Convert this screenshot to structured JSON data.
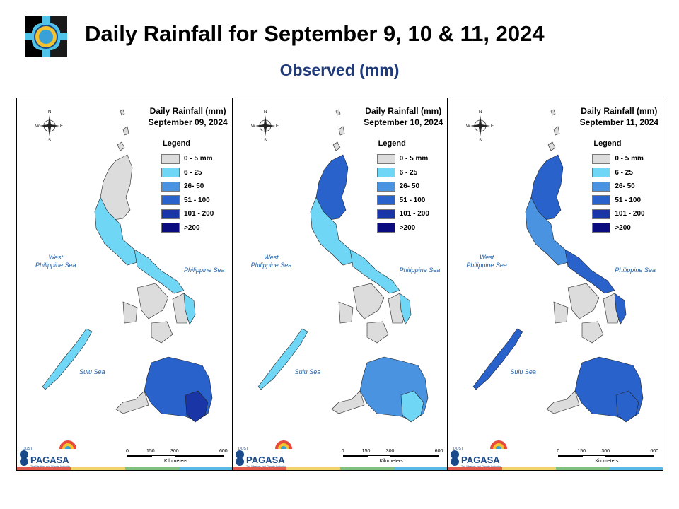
{
  "header": {
    "title": "Daily Rainfall for September 9, 10 & 11, 2024",
    "subtitle": "Observed (mm)",
    "logo_icon": "dost-seal-icon"
  },
  "legend": {
    "heading": "Legend",
    "items": [
      {
        "label": "0 - 5 mm",
        "color": "#dcdcdc"
      },
      {
        "label": "6 - 25",
        "color": "#6fd6f6"
      },
      {
        "label": "26- 50",
        "color": "#4a93e0"
      },
      {
        "label": "51 - 100",
        "color": "#2a62cc"
      },
      {
        "label": "101 - 200",
        "color": "#1a36a6"
      },
      {
        "label": ">200",
        "color": "#0b0b80"
      }
    ]
  },
  "seas": {
    "west": "West\nPhilippine Sea",
    "east": "Philippine Sea",
    "south": "Sulu Sea"
  },
  "scale": {
    "ticks": [
      "0",
      "150",
      "300",
      "600"
    ],
    "unit": "Kilometers"
  },
  "compass": {
    "n": "N",
    "s": "S",
    "e": "E",
    "w": "W"
  },
  "brand": {
    "line1": "PAGASA",
    "small": "DOST",
    "tag": "The Weather and Climate Authority"
  },
  "stripe_colors": [
    "#e05b4b",
    "#f2d26a",
    "#7fbf7f",
    "#5bb8e6"
  ],
  "panels": [
    {
      "id": "sep09",
      "title_line1": "Daily Rainfall (mm)",
      "title_line2": "September 09, 2024",
      "rain": {
        "luzon_north": 0,
        "luzon_central": 1,
        "bicol": 1,
        "visayas_east": 1,
        "mindanao": 3,
        "palawan": 1,
        "mindanao_se": 4
      }
    },
    {
      "id": "sep10",
      "title_line1": "Daily Rainfall (mm)",
      "title_line2": "September 10, 2024",
      "rain": {
        "luzon_north": 3,
        "luzon_central": 1,
        "bicol": 1,
        "visayas_east": 1,
        "mindanao": 2,
        "palawan": 1,
        "mindanao_se": 1
      }
    },
    {
      "id": "sep11",
      "title_line1": "Daily Rainfall (mm)",
      "title_line2": "September 11, 2024",
      "rain": {
        "luzon_north": 3,
        "luzon_central": 2,
        "bicol": 3,
        "visayas_east": 3,
        "mindanao": 3,
        "palawan": 3,
        "mindanao_se": 3
      }
    }
  ]
}
